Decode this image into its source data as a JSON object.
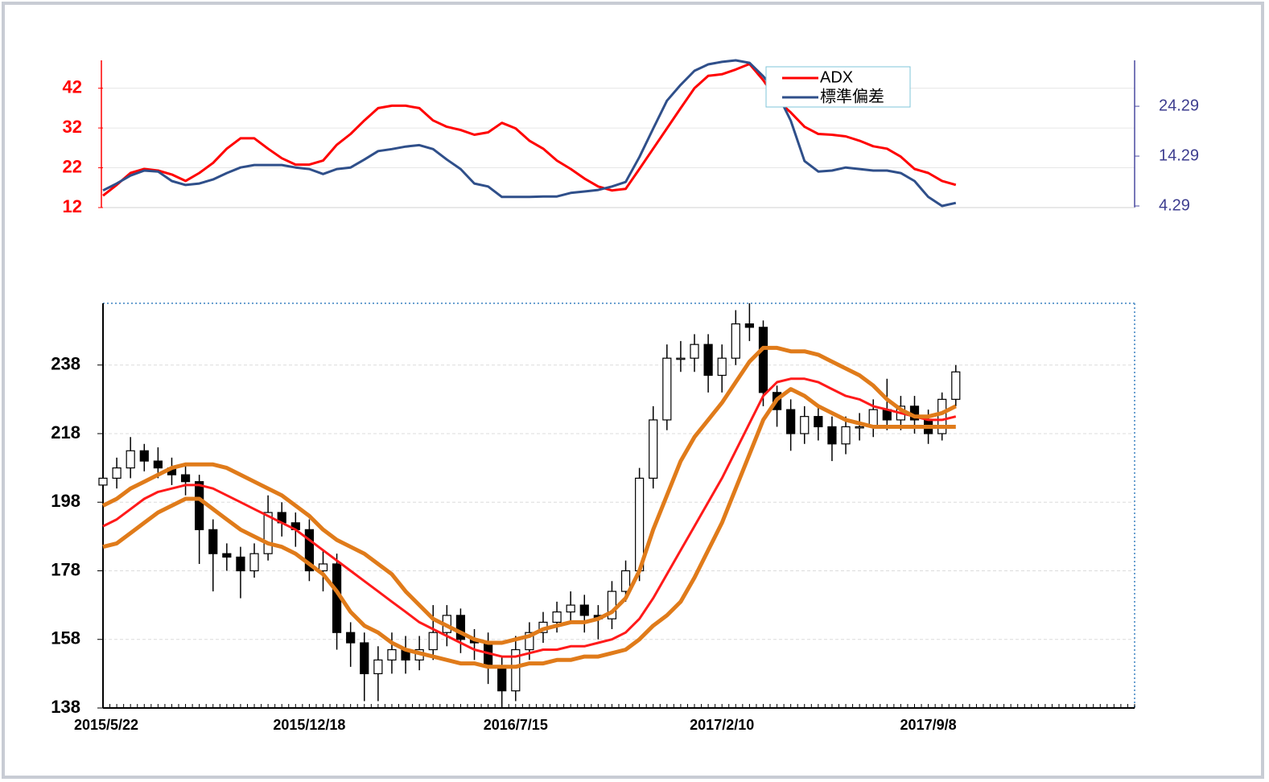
{
  "chart_data": [
    {
      "type": "line",
      "xlim": [
        0,
        75
      ],
      "ylim": [
        12,
        49
      ],
      "yticks": [
        12,
        22,
        32,
        42
      ],
      "y2lim": [
        3.97,
        33.5
      ],
      "y2ticks": [
        4.29,
        14.29,
        24.29
      ],
      "grid": true,
      "legend": "top-right",
      "series": [
        {
          "name": "ADX",
          "color": "#ff0000",
          "axis": "y",
          "values": [
            15,
            17.7,
            20.7,
            21.7,
            21.3,
            20.3,
            18.7,
            20.7,
            23.2,
            26.8,
            29.4,
            29.4,
            26.8,
            24.4,
            22.8,
            22.8,
            23.8,
            27.8,
            30.5,
            33.9,
            37,
            37.6,
            37.6,
            37,
            33.9,
            32.3,
            31.5,
            30.3,
            30.9,
            33.3,
            31.9,
            28.8,
            26.8,
            23.8,
            21.7,
            19.3,
            17.3,
            16.3,
            16.7,
            21.7,
            26.8,
            31.9,
            37,
            42,
            45.1,
            45.5,
            46.7,
            48.1,
            44,
            39,
            35.9,
            32.3,
            30.5,
            30.3,
            29.9,
            28.8,
            27.4,
            26.8,
            24.8,
            21.7,
            20.7,
            18.7,
            17.7
          ]
        },
        {
          "name": "標準偏差",
          "color": "#2f4f8a",
          "axis": "y2",
          "values": [
            7.4,
            8.8,
            10.4,
            11.4,
            11.2,
            9.3,
            8.5,
            8.8,
            9.6,
            10.9,
            12,
            12.5,
            12.5,
            12.5,
            12,
            11.7,
            10.7,
            11.7,
            12,
            13.6,
            15.3,
            15.7,
            16.2,
            16.5,
            15.7,
            13.6,
            11.7,
            8.8,
            8.2,
            6.1,
            6.1,
            6.1,
            6.2,
            6.2,
            6.9,
            7.2,
            7.5,
            8.2,
            9.1,
            14.1,
            19.8,
            25.4,
            28.6,
            31.4,
            32.7,
            33.2,
            33.5,
            33,
            30.3,
            27,
            21.4,
            13.3,
            11.2,
            11.4,
            12,
            11.7,
            11.4,
            11.4,
            10.9,
            9.3,
            6.1,
            4.3,
            4.9
          ]
        }
      ]
    },
    {
      "type": "candlestick",
      "xlim": [
        0,
        75
      ],
      "categories": [
        "2015/5/22",
        null,
        null,
        null,
        null,
        null,
        null,
        null,
        null,
        null,
        null,
        null,
        null,
        null,
        null,
        "2015/12/18",
        null,
        null,
        null,
        null,
        null,
        null,
        null,
        null,
        null,
        null,
        null,
        null,
        null,
        null,
        "2016/7/15",
        null,
        null,
        null,
        null,
        null,
        null,
        null,
        null,
        null,
        null,
        null,
        null,
        null,
        null,
        "2017/2/10",
        null,
        null,
        null,
        null,
        null,
        null,
        null,
        null,
        null,
        null,
        null,
        null,
        null,
        null,
        "2017/9/8",
        null,
        null
      ],
      "open": [
        203,
        205,
        208,
        213,
        210,
        208,
        206,
        204,
        190,
        183,
        182,
        178,
        183,
        195,
        192,
        190,
        178,
        180,
        160,
        157,
        148,
        152,
        155,
        152,
        155,
        160,
        165,
        158,
        157,
        150,
        143,
        155,
        160,
        163,
        166,
        168,
        165,
        164,
        172,
        178,
        205,
        222,
        240,
        240,
        244,
        235,
        240,
        250,
        249,
        230,
        225,
        218,
        223,
        220,
        215,
        220,
        220,
        225,
        222,
        226,
        222,
        218,
        228
      ],
      "high": [
        208,
        211,
        217,
        215,
        214,
        211,
        209,
        206,
        193,
        186,
        185,
        186,
        200,
        198,
        195,
        193,
        184,
        183,
        163,
        160,
        156,
        160,
        159,
        159,
        168,
        168,
        167,
        161,
        160,
        153,
        159,
        163,
        166,
        169,
        172,
        171,
        168,
        175,
        181,
        208,
        226,
        244,
        245,
        247,
        247,
        244,
        254,
        256,
        251,
        232,
        228,
        226,
        226,
        223,
        223,
        224,
        228,
        234,
        229,
        229,
        225,
        230,
        238
      ],
      "low": [
        200,
        202,
        205,
        207,
        205,
        203,
        200,
        180,
        172,
        178,
        170,
        176,
        181,
        188,
        185,
        175,
        172,
        155,
        150,
        140,
        140,
        148,
        148,
        149,
        152,
        156,
        154,
        152,
        145,
        138,
        140,
        152,
        157,
        160,
        163,
        160,
        158,
        161,
        169,
        175,
        202,
        219,
        236,
        236,
        230,
        230,
        238,
        245,
        226,
        220,
        213,
        215,
        216,
        210,
        212,
        216,
        217,
        219,
        219,
        218,
        215,
        216,
        226
      ],
      "close": [
        205,
        208,
        213,
        210,
        208,
        206,
        204,
        190,
        183,
        182,
        178,
        183,
        195,
        192,
        190,
        178,
        180,
        160,
        157,
        148,
        152,
        155,
        152,
        155,
        160,
        165,
        158,
        157,
        150,
        143,
        155,
        160,
        163,
        166,
        168,
        165,
        164,
        172,
        178,
        205,
        222,
        240,
        240,
        244,
        235,
        240,
        250,
        249,
        230,
        225,
        218,
        223,
        220,
        215,
        220,
        220,
        225,
        222,
        226,
        222,
        218,
        228,
        236
      ],
      "up_color": "#ffffff",
      "down_color": "#000000",
      "series": [
        {
          "color": "#ff1a1a",
          "values": [
            191,
            193,
            196,
            199,
            201,
            202,
            203,
            203,
            202,
            200,
            198,
            196,
            194,
            192,
            190,
            187,
            184,
            181,
            178,
            175,
            172,
            169,
            166,
            163,
            161,
            159,
            157,
            155,
            154,
            153,
            153,
            154,
            155,
            155,
            156,
            156,
            157,
            158,
            160,
            164,
            170,
            177,
            184,
            191,
            198,
            205,
            213,
            221,
            229,
            233,
            234,
            234,
            233,
            231,
            229,
            228,
            226,
            225,
            224,
            223,
            222,
            222,
            223
          ]
        },
        {
          "color": "#e07b1a",
          "values": [
            197,
            199,
            202,
            204,
            206,
            208,
            209,
            209,
            209,
            208,
            206,
            204,
            202,
            200,
            197,
            194,
            190,
            187,
            185,
            183,
            180,
            177,
            172,
            168,
            164,
            162,
            160,
            158,
            157,
            157,
            158,
            159,
            161,
            162,
            163,
            163,
            164,
            166,
            170,
            178,
            190,
            200,
            210,
            217,
            222,
            227,
            233,
            239,
            243,
            243,
            242,
            242,
            241,
            239,
            237,
            235,
            232,
            228,
            225,
            223,
            223,
            224,
            226
          ]
        },
        {
          "color": "#e07b1a",
          "values": [
            185,
            186,
            189,
            192,
            195,
            197,
            199,
            199,
            196,
            193,
            190,
            188,
            186,
            185,
            183,
            180,
            177,
            172,
            166,
            162,
            160,
            157,
            155,
            154,
            153,
            152,
            151,
            151,
            150,
            150,
            150,
            151,
            151,
            152,
            152,
            153,
            153,
            154,
            155,
            158,
            162,
            165,
            169,
            176,
            184,
            192,
            202,
            212,
            222,
            228,
            231,
            229,
            226,
            224,
            222,
            221,
            220,
            220,
            220,
            220,
            220,
            220,
            220
          ]
        }
      ],
      "ylim": [
        138,
        256
      ],
      "yticks": [
        138,
        158,
        178,
        198,
        218,
        238
      ],
      "grid": true
    }
  ]
}
